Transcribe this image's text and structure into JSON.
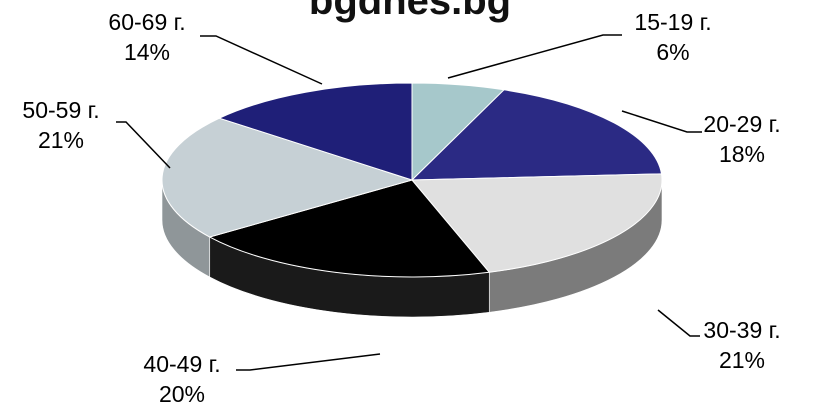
{
  "chart_data": {
    "type": "pie",
    "style": "3d",
    "title": "bgdnes.bg",
    "slices": [
      {
        "label": "15-19 г.",
        "value": 6,
        "value_label": "6%",
        "color": "#a6c8cb"
      },
      {
        "label": "20-29 г.",
        "value": 18,
        "value_label": "18%",
        "color": "#2b2a84"
      },
      {
        "label": "30-39 г.",
        "value": 21,
        "value_label": "21%",
        "color": "#e0e0e0"
      },
      {
        "label": "40-49 г.",
        "value": 20,
        "value_label": "20%",
        "color": "#000000"
      },
      {
        "label": "50-59 г.",
        "value": 21,
        "value_label": "21%",
        "color": "#c6d0d5"
      },
      {
        "label": "60-69 г.",
        "value": 14,
        "value_label": "14%",
        "color": "#1f1f78"
      }
    ],
    "start_angle": "top",
    "direction": "clockwise",
    "legend": "none",
    "data_labels": "outside-with-leader-lines"
  }
}
